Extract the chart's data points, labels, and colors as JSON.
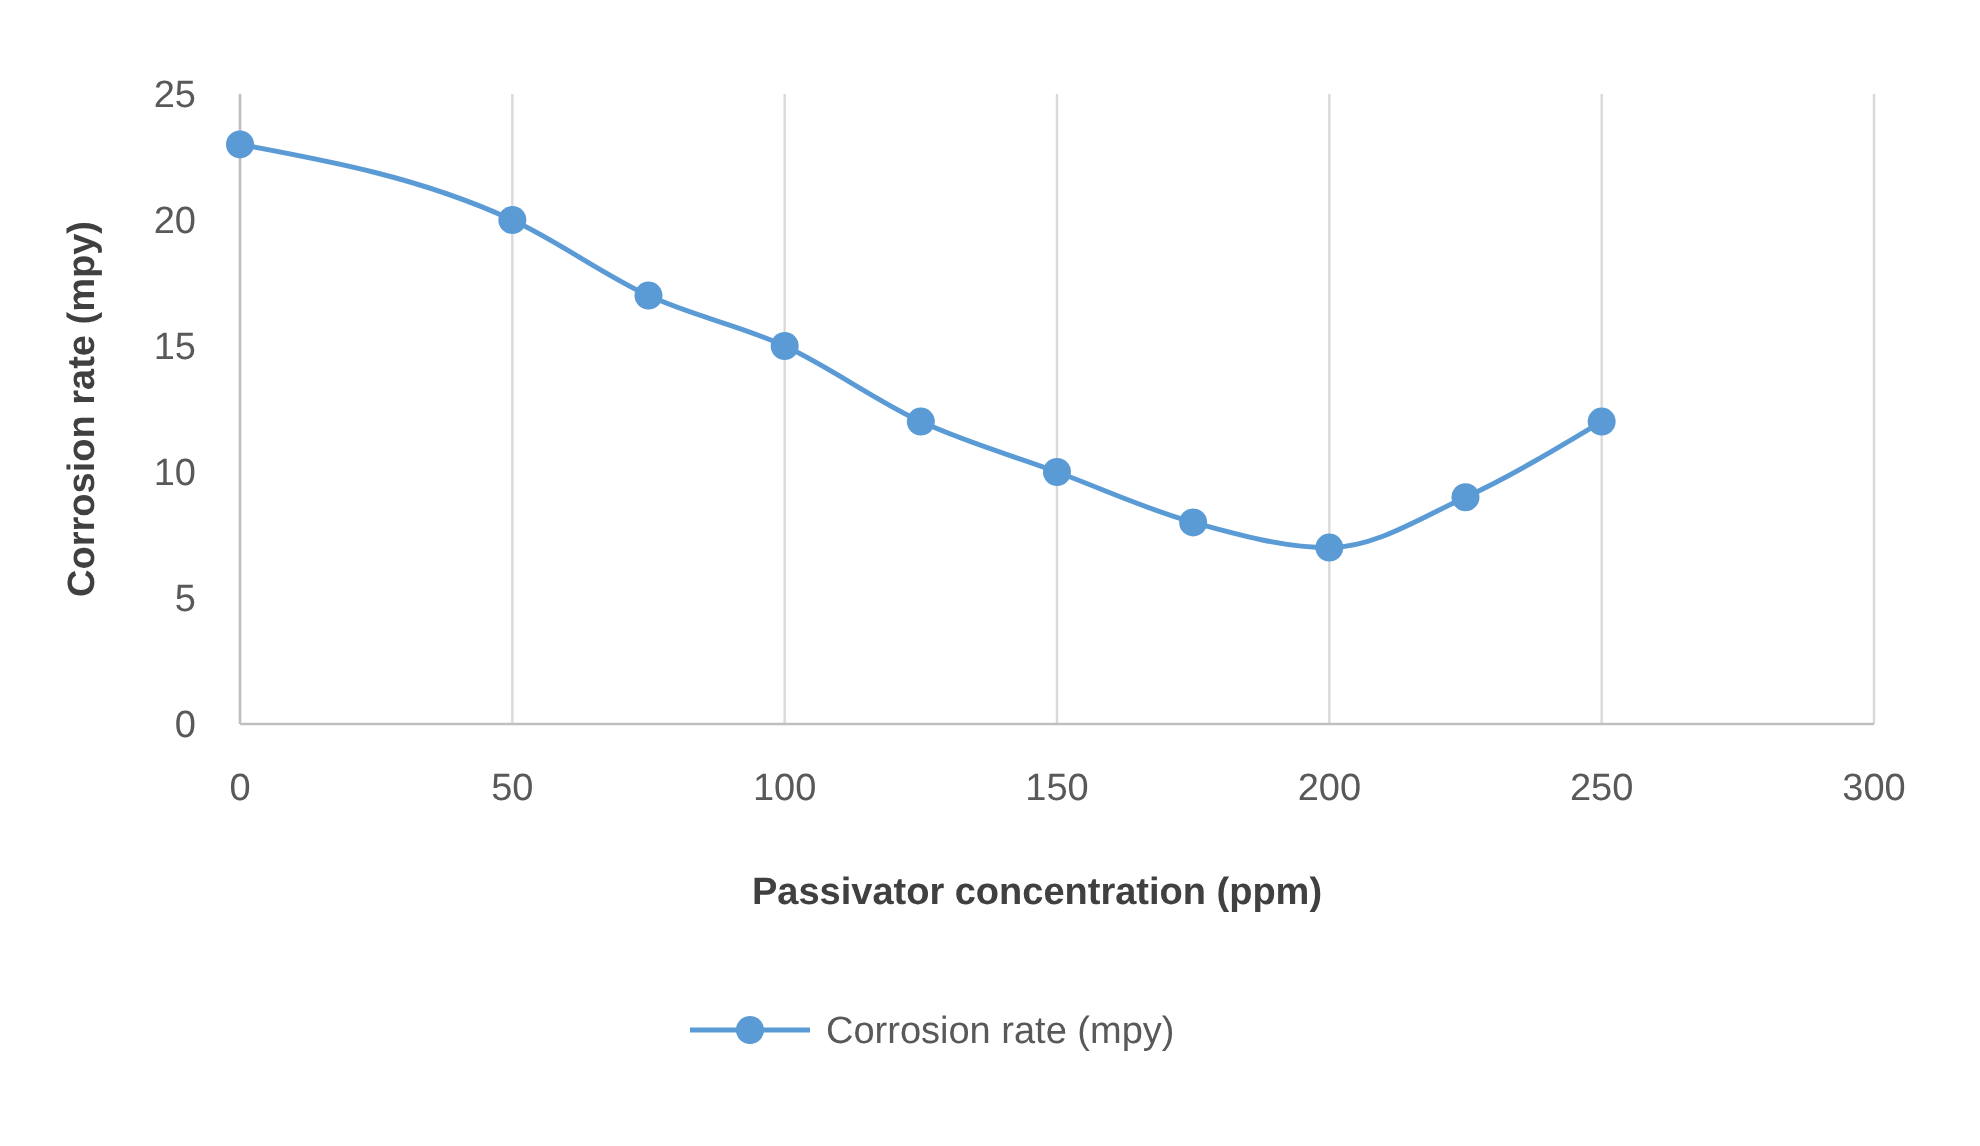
{
  "chart_data": {
    "type": "line",
    "xlabel": "Passivator concentration (ppm)",
    "ylabel": "Corrosion rate (mpy)",
    "x": [
      0,
      50,
      75,
      100,
      125,
      150,
      175,
      200,
      225,
      250
    ],
    "series": [
      {
        "name": "Corrosion rate (mpy)",
        "color": "#5b9bd5",
        "values": [
          23,
          20,
          17,
          15,
          12,
          10,
          8,
          7,
          9,
          12
        ]
      }
    ],
    "xlim": [
      0,
      300
    ],
    "xticks": [
      0,
      50,
      100,
      150,
      200,
      250,
      300
    ],
    "ylim": [
      0,
      25
    ],
    "yticks": [
      0,
      5,
      10,
      15,
      20,
      25
    ],
    "grid": "x",
    "legend": "bottom",
    "marker": "circle",
    "line_style": "solid"
  }
}
